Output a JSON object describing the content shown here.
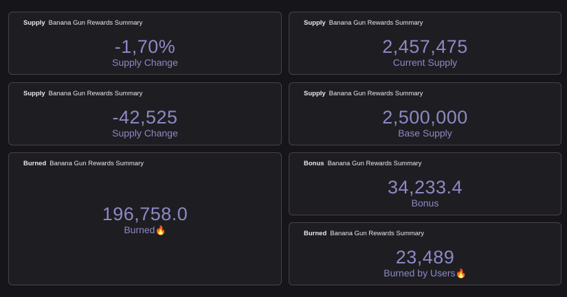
{
  "cards": [
    {
      "category": "Supply",
      "subtitle": "Banana Gun Rewards Summary",
      "value": "-1,70%",
      "label": "Supply Change"
    },
    {
      "category": "Supply",
      "subtitle": "Banana Gun Rewards Summary",
      "value": "2,457,475",
      "label": "Current Supply"
    },
    {
      "category": "Supply",
      "subtitle": "Banana Gun Rewards Summary",
      "value": "-42,525",
      "label": "Supply Change"
    },
    {
      "category": "Supply",
      "subtitle": "Banana Gun Rewards Summary",
      "value": "2,500,000",
      "label": "Base Supply"
    },
    {
      "category": "Burned",
      "subtitle": "Banana Gun Rewards Summary",
      "value": "196,758.0",
      "label": "Burned",
      "label_icon": "🔥"
    },
    {
      "category": "Bonus",
      "subtitle": "Banana Gun Rewards Summary",
      "value": "34,233.4",
      "label": "Bonus"
    },
    {
      "category": "Burned",
      "subtitle": "Banana Gun Rewards Summary",
      "value": "23,489",
      "label": "Burned by Users",
      "label_icon": "🔥"
    }
  ],
  "icons": {
    "fire": "fire-icon"
  },
  "colors": {
    "background": "#161519",
    "card_background": "#1e1d22",
    "card_border": "#4a4246",
    "metric_text": "#8d89c4",
    "header_text": "#e8e8e8"
  }
}
